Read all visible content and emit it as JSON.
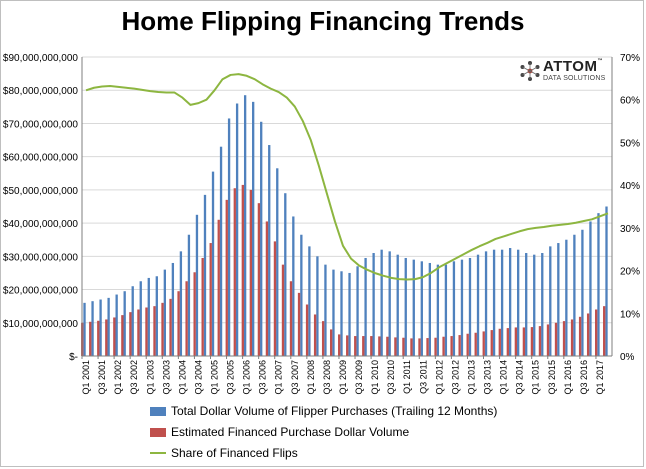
{
  "chart_data": {
    "type": "bar",
    "title": "Home Flipping Financing Trends",
    "logo": {
      "brand": "ATTOM",
      "tagline": "DATA SOLUTIONS",
      "tm": "™"
    },
    "colors": {
      "total": "#4f81bd",
      "financed": "#c0504d",
      "share": "#8db640",
      "grid": "#d9d9d9"
    },
    "left_axis": {
      "range": [
        0,
        90000000000
      ],
      "ticks": [
        {
          "v": 0,
          "label": "$-"
        },
        {
          "v": 10000000000,
          "label": "$10,000,000,000"
        },
        {
          "v": 20000000000,
          "label": "$20,000,000,000"
        },
        {
          "v": 30000000000,
          "label": "$30,000,000,000"
        },
        {
          "v": 40000000000,
          "label": "$40,000,000,000"
        },
        {
          "v": 50000000000,
          "label": "$50,000,000,000"
        },
        {
          "v": 60000000000,
          "label": "$60,000,000,000"
        },
        {
          "v": 70000000000,
          "label": "$70,000,000,000"
        },
        {
          "v": 80000000000,
          "label": "$80,000,000,000"
        },
        {
          "v": 90000000000,
          "label": "$90,000,000,000"
        }
      ]
    },
    "right_axis": {
      "range": [
        0,
        70
      ],
      "ticks": [
        {
          "v": 0,
          "label": "0%"
        },
        {
          "v": 10,
          "label": "10%"
        },
        {
          "v": 20,
          "label": "20%"
        },
        {
          "v": 30,
          "label": "30%"
        },
        {
          "v": 40,
          "label": "40%"
        },
        {
          "v": 50,
          "label": "50%"
        },
        {
          "v": 60,
          "label": "60%"
        },
        {
          "v": 70,
          "label": "70%"
        }
      ]
    },
    "categories": [
      "Q1 2001",
      "Q2 2001",
      "Q3 2001",
      "Q4 2001",
      "Q1 2002",
      "Q2 2002",
      "Q3 2002",
      "Q4 2002",
      "Q1 2003",
      "Q2 2003",
      "Q3 2003",
      "Q4 2003",
      "Q1 2004",
      "Q2 2004",
      "Q3 2004",
      "Q4 2004",
      "Q1 2005",
      "Q2 2005",
      "Q3 2005",
      "Q4 2005",
      "Q1 2006",
      "Q2 2006",
      "Q3 2006",
      "Q4 2006",
      "Q1 2007",
      "Q2 2007",
      "Q3 2007",
      "Q4 2007",
      "Q1 2008",
      "Q2 2008",
      "Q3 2008",
      "Q4 2008",
      "Q1 2009",
      "Q2 2009",
      "Q3 2009",
      "Q4 2009",
      "Q1 2010",
      "Q2 2010",
      "Q3 2010",
      "Q4 2010",
      "Q1 2011",
      "Q2 2011",
      "Q3 2011",
      "Q4 2011",
      "Q1 2012",
      "Q2 2012",
      "Q3 2012",
      "Q4 2012",
      "Q1 2013",
      "Q2 2013",
      "Q3 2013",
      "Q4 2013",
      "Q1 2014",
      "Q2 2014",
      "Q3 2014",
      "Q4 2014",
      "Q1 2015",
      "Q2 2015",
      "Q3 2015",
      "Q4 2015",
      "Q1 2016",
      "Q2 2016",
      "Q3 2016",
      "Q4 2016",
      "Q1 2017",
      "Q2 2017"
    ],
    "tick_labels": [
      "Q1 2001",
      "Q3 2001",
      "Q1 2002",
      "Q3 2002",
      "Q1 2003",
      "Q3 2003",
      "Q1 2004",
      "Q3 2004",
      "Q1 2005",
      "Q3 2005",
      "Q1 2006",
      "Q3 2006",
      "Q1 2007",
      "Q3 2007",
      "Q1 2008",
      "Q3 2008",
      "Q1 2009",
      "Q3 2009",
      "Q1 2010",
      "Q3 2010",
      "Q1 2011",
      "Q3 2011",
      "Q1 2012",
      "Q3 2012",
      "Q1 2013",
      "Q3 2013",
      "Q1 2014",
      "Q3 2014",
      "Q1 2015",
      "Q3 2015",
      "Q1 2016",
      "Q3 2016",
      "Q1 2017"
    ],
    "series": [
      {
        "name": "Total Dollar Volume of Flipper Purchases (Trailing 12 Months)",
        "axis": "left",
        "kind": "bar",
        "values": [
          16.0,
          16.5,
          17.0,
          17.5,
          18.5,
          19.5,
          21.0,
          22.5,
          23.5,
          24.0,
          26.0,
          28.0,
          31.5,
          36.5,
          42.5,
          48.5,
          55.5,
          63.0,
          71.5,
          76.0,
          78.5,
          76.5,
          70.5,
          63.5,
          56.5,
          49.0,
          42.0,
          36.5,
          33.0,
          30.0,
          27.5,
          26.0,
          25.5,
          25.0,
          27.0,
          29.5,
          31.0,
          32.0,
          31.5,
          30.5,
          29.5,
          29.0,
          28.5,
          28.0,
          27.5,
          27.5,
          28.5,
          29.0,
          29.5,
          30.5,
          31.5,
          32.0,
          32.0,
          32.5,
          32.0,
          31.0,
          30.5,
          31.0,
          33.0,
          34.0,
          35.0,
          36.5,
          38.0,
          40.5,
          43.0,
          45.0
        ]
      },
      {
        "name": "Estimated Financed Purchase Dollar Volume",
        "axis": "left",
        "kind": "bar",
        "values": [
          10.0,
          10.3,
          10.6,
          11.0,
          11.6,
          12.3,
          13.2,
          14.0,
          14.6,
          15.0,
          16.0,
          17.2,
          19.5,
          22.5,
          25.2,
          29.5,
          34.0,
          41.0,
          47.0,
          50.5,
          51.5,
          50.0,
          46.0,
          40.5,
          34.5,
          27.5,
          22.5,
          19.0,
          15.5,
          12.5,
          10.5,
          8.0,
          6.5,
          6.2,
          6.0,
          6.0,
          6.0,
          5.9,
          5.8,
          5.6,
          5.5,
          5.3,
          5.3,
          5.4,
          5.5,
          5.8,
          6.0,
          6.3,
          6.7,
          7.0,
          7.4,
          7.8,
          8.2,
          8.4,
          8.6,
          8.6,
          8.7,
          9.0,
          9.5,
          10.0,
          10.5,
          11.0,
          11.8,
          12.8,
          14.0,
          15.0
        ]
      },
      {
        "name": "Share of Financed Flips",
        "axis": "right",
        "kind": "line",
        "values": [
          62.2,
          62.8,
          63.1,
          63.2,
          63.0,
          62.8,
          62.6,
          62.3,
          62.0,
          61.8,
          61.7,
          61.7,
          60.5,
          58.8,
          59.2,
          60.0,
          62.2,
          64.8,
          65.8,
          66.0,
          65.6,
          64.8,
          63.6,
          62.6,
          61.8,
          60.5,
          58.4,
          55.0,
          50.5,
          44.5,
          38.0,
          31.5,
          25.8,
          22.8,
          21.2,
          20.2,
          19.4,
          18.8,
          18.3,
          18.0,
          17.9,
          18.0,
          18.5,
          19.5,
          20.8,
          21.8,
          22.8,
          23.8,
          24.8,
          25.7,
          26.5,
          27.4,
          28.0,
          28.6,
          29.2,
          29.7,
          30.0,
          30.2,
          30.5,
          30.7,
          30.9,
          31.2,
          31.6,
          32.0,
          32.7,
          33.4
        ]
      }
    ],
    "legend": [
      "Total Dollar Volume of Flipper Purchases (Trailing 12 Months)",
      "Estimated Financed Purchase Dollar Volume",
      "Share of Financed Flips"
    ],
    "units_note": "bar values in billions of dollars"
  }
}
